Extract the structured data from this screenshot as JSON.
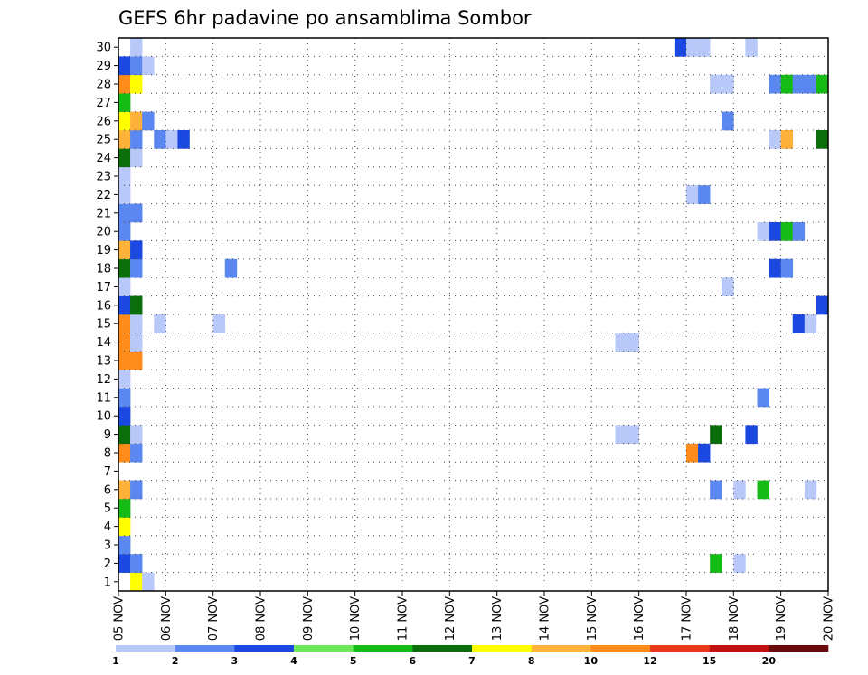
{
  "chart_data": {
    "type": "heatmap",
    "title": "GEFS 6hr padavine po ansamblima Sombor",
    "xlabel": "",
    "ylabel": "",
    "x_ticks": [
      "05 NOV",
      "06 NOV",
      "07 NOV",
      "08 NOV",
      "09 NOV",
      "10 NOV",
      "11 NOV",
      "12 NOV",
      "13 NOV",
      "14 NOV",
      "15 NOV",
      "16 NOV",
      "17 NOV",
      "18 NOV",
      "19 NOV",
      "20 NOV"
    ],
    "x_step_hours": 6,
    "x_steps_total": 60,
    "y_ticks": [
      1,
      2,
      3,
      4,
      5,
      6,
      7,
      8,
      9,
      10,
      11,
      12,
      13,
      14,
      15,
      16,
      17,
      18,
      19,
      20,
      21,
      22,
      23,
      24,
      25,
      26,
      27,
      28,
      29,
      30
    ],
    "ylim": [
      0,
      30
    ],
    "grid": true,
    "legend": {
      "placement": "bottom",
      "labels": [
        "1",
        "2",
        "3",
        "4",
        "5",
        "6",
        "7",
        "8",
        "10",
        "12",
        "15",
        "20"
      ],
      "colors": [
        "#b8c8f8",
        "#5b87f0",
        "#1a48e0",
        "#6ce85a",
        "#16bc16",
        "#0a6e0a",
        "#ffff00",
        "#ffb23a",
        "#ff8c1a",
        "#e83a1a",
        "#c01010",
        "#6a0a0a"
      ]
    },
    "cells": [
      {
        "m": 0,
        "t": 1,
        "v": 7
      },
      {
        "m": 0,
        "t": 2,
        "v": 1
      },
      {
        "m": 1,
        "t": 0,
        "v": 3
      },
      {
        "m": 1,
        "t": 1,
        "v": 2
      },
      {
        "m": 2,
        "t": 0,
        "v": 2
      },
      {
        "m": 3,
        "t": 0,
        "v": 7
      },
      {
        "m": 4,
        "t": 0,
        "v": 5
      },
      {
        "m": 5,
        "t": 0,
        "v": 8
      },
      {
        "m": 5,
        "t": 1,
        "v": 2
      },
      {
        "m": 7,
        "t": 0,
        "v": 10
      },
      {
        "m": 7,
        "t": 1,
        "v": 2
      },
      {
        "m": 8,
        "t": 0,
        "v": 6
      },
      {
        "m": 8,
        "t": 1,
        "v": 1
      },
      {
        "m": 9,
        "t": 0,
        "v": 3
      },
      {
        "m": 10,
        "t": 0,
        "v": 2
      },
      {
        "m": 11,
        "t": 0,
        "v": 1
      },
      {
        "m": 12,
        "t": 0,
        "v": 10
      },
      {
        "m": 12,
        "t": 1,
        "v": 10
      },
      {
        "m": 13,
        "t": 0,
        "v": 10
      },
      {
        "m": 13,
        "t": 1,
        "v": 1
      },
      {
        "m": 14,
        "t": 0,
        "v": 10
      },
      {
        "m": 14,
        "t": 1,
        "v": 1
      },
      {
        "m": 15,
        "t": 0,
        "v": 3
      },
      {
        "m": 15,
        "t": 1,
        "v": 6
      },
      {
        "m": 16,
        "t": 0,
        "v": 1
      },
      {
        "m": 17,
        "t": 0,
        "v": 6
      },
      {
        "m": 17,
        "t": 1,
        "v": 2
      },
      {
        "m": 18,
        "t": 0,
        "v": 8
      },
      {
        "m": 18,
        "t": 1,
        "v": 3
      },
      {
        "m": 19,
        "t": 0,
        "v": 2
      },
      {
        "m": 20,
        "t": 0,
        "v": 2
      },
      {
        "m": 20,
        "t": 1,
        "v": 2
      },
      {
        "m": 21,
        "t": 0,
        "v": 1
      },
      {
        "m": 22,
        "t": 0,
        "v": 1
      },
      {
        "m": 23,
        "t": 0,
        "v": 6
      },
      {
        "m": 23,
        "t": 1,
        "v": 1
      },
      {
        "m": 24,
        "t": 0,
        "v": 8
      },
      {
        "m": 24,
        "t": 1,
        "v": 2
      },
      {
        "m": 25,
        "t": 0,
        "v": 7
      },
      {
        "m": 25,
        "t": 1,
        "v": 8
      },
      {
        "m": 25,
        "t": 2,
        "v": 2
      },
      {
        "m": 26,
        "t": 0,
        "v": 5
      },
      {
        "m": 27,
        "t": 0,
        "v": 10
      },
      {
        "m": 27,
        "t": 1,
        "v": 7
      },
      {
        "m": 28,
        "t": 0,
        "v": 3
      },
      {
        "m": 28,
        "t": 1,
        "v": 2
      },
      {
        "m": 28,
        "t": 2,
        "v": 1
      },
      {
        "m": 29,
        "t": 1,
        "v": 1
      },
      {
        "m": 24,
        "t": 3,
        "v": 2
      },
      {
        "m": 24,
        "t": 4,
        "v": 1
      },
      {
        "m": 24,
        "t": 5,
        "v": 3
      },
      {
        "m": 17,
        "t": 9,
        "v": 2
      },
      {
        "m": 14,
        "t": 3,
        "v": 1
      },
      {
        "m": 14,
        "t": 8,
        "v": 1
      },
      {
        "m": 13,
        "t": 42,
        "v": 1
      },
      {
        "m": 13,
        "t": 43,
        "v": 1
      },
      {
        "m": 8,
        "t": 42,
        "v": 1
      },
      {
        "m": 8,
        "t": 43,
        "v": 1
      },
      {
        "m": 29,
        "t": 47,
        "v": 3
      },
      {
        "m": 29,
        "t": 48,
        "v": 1
      },
      {
        "m": 29,
        "t": 49,
        "v": 1
      },
      {
        "m": 29,
        "t": 53,
        "v": 1
      },
      {
        "m": 27,
        "t": 50,
        "v": 1
      },
      {
        "m": 27,
        "t": 51,
        "v": 1
      },
      {
        "m": 27,
        "t": 55,
        "v": 2
      },
      {
        "m": 27,
        "t": 56,
        "v": 5
      },
      {
        "m": 27,
        "t": 57,
        "v": 2
      },
      {
        "m": 27,
        "t": 58,
        "v": 2
      },
      {
        "m": 27,
        "t": 59,
        "v": 5
      },
      {
        "m": 25,
        "t": 51,
        "v": 2
      },
      {
        "m": 24,
        "t": 55,
        "v": 1
      },
      {
        "m": 24,
        "t": 56,
        "v": 8
      },
      {
        "m": 24,
        "t": 59,
        "v": 6
      },
      {
        "m": 21,
        "t": 48,
        "v": 1
      },
      {
        "m": 21,
        "t": 49,
        "v": 2
      },
      {
        "m": 19,
        "t": 54,
        "v": 1
      },
      {
        "m": 19,
        "t": 55,
        "v": 3
      },
      {
        "m": 19,
        "t": 56,
        "v": 5
      },
      {
        "m": 19,
        "t": 57,
        "v": 2
      },
      {
        "m": 17,
        "t": 55,
        "v": 3
      },
      {
        "m": 17,
        "t": 56,
        "v": 2
      },
      {
        "m": 16,
        "t": 51,
        "v": 1
      },
      {
        "m": 15,
        "t": 59,
        "v": 3
      },
      {
        "m": 14,
        "t": 57,
        "v": 3
      },
      {
        "m": 14,
        "t": 58,
        "v": 1
      },
      {
        "m": 10,
        "t": 54,
        "v": 2
      },
      {
        "m": 8,
        "t": 50,
        "v": 6
      },
      {
        "m": 8,
        "t": 53,
        "v": 3
      },
      {
        "m": 7,
        "t": 48,
        "v": 10
      },
      {
        "m": 7,
        "t": 49,
        "v": 3
      },
      {
        "m": 5,
        "t": 50,
        "v": 2
      },
      {
        "m": 5,
        "t": 52,
        "v": 1
      },
      {
        "m": 5,
        "t": 54,
        "v": 5
      },
      {
        "m": 5,
        "t": 58,
        "v": 1
      },
      {
        "m": 1,
        "t": 50,
        "v": 5
      },
      {
        "m": 1,
        "t": 52,
        "v": 1
      }
    ]
  }
}
